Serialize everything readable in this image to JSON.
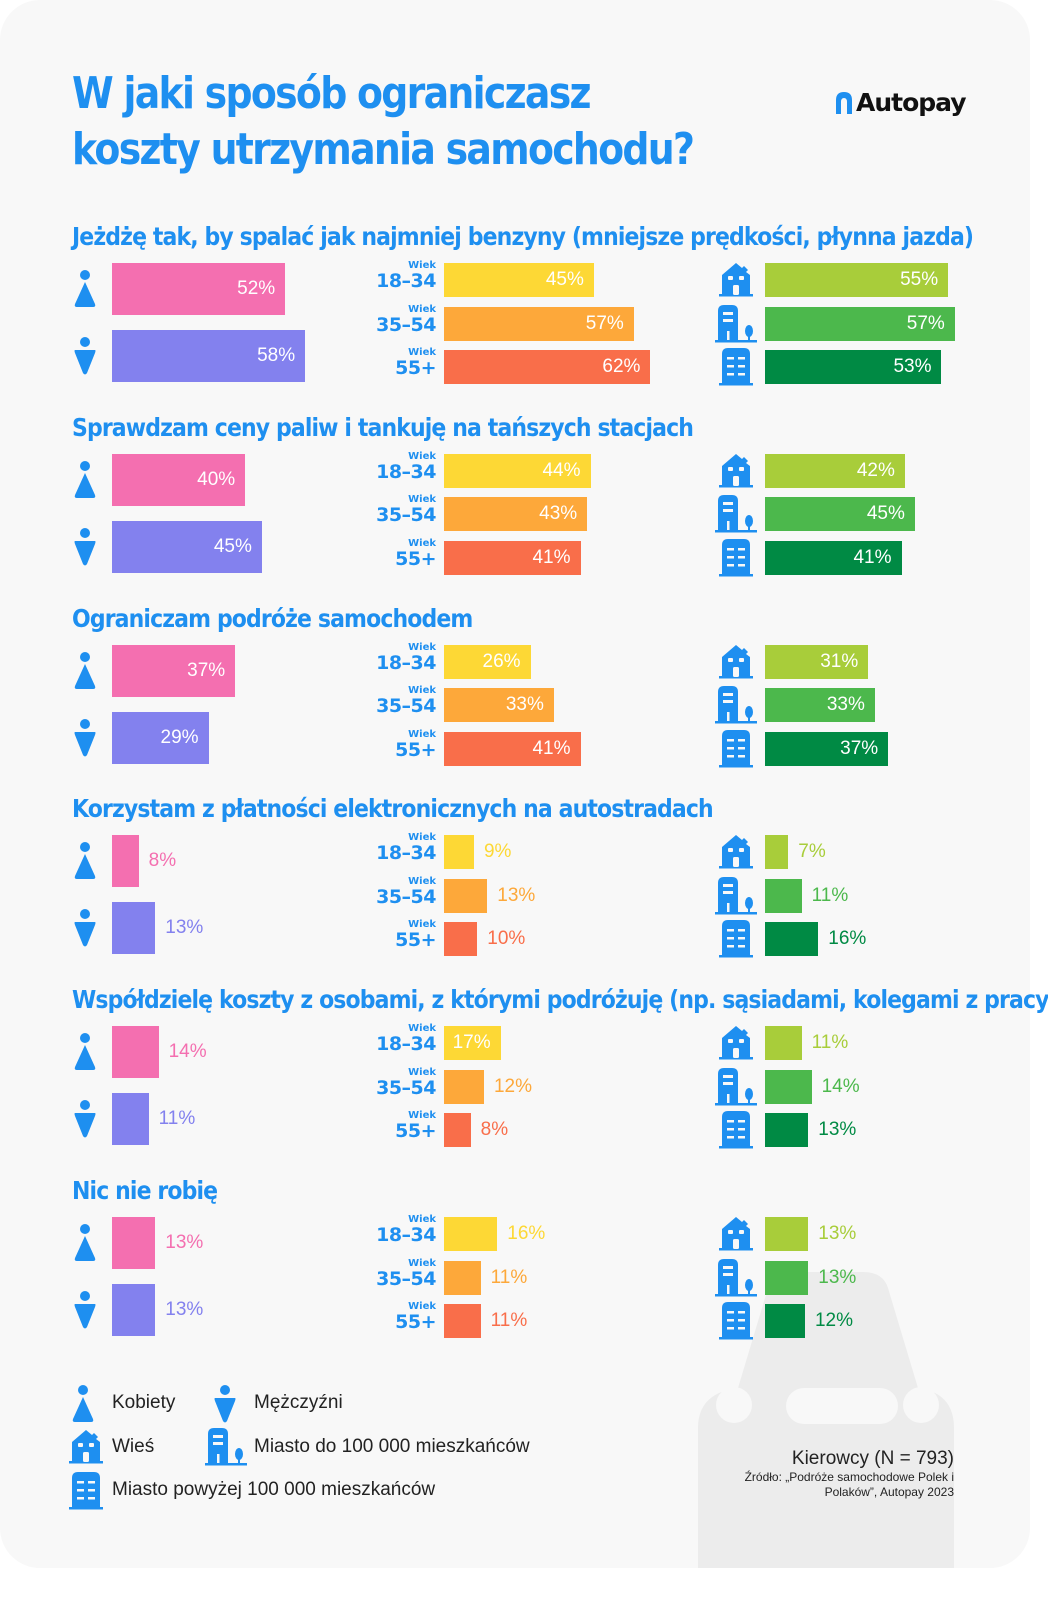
{
  "header": {
    "title_line1": "W jaki sposób ograniczasz",
    "title_line2": "koszty utrzymania samochodu?",
    "logo": "Autopay"
  },
  "colors": {
    "accent": "#1e8ff0",
    "women": "#f46fb0",
    "men": "#8381ee",
    "age_18_34": "#fdd835",
    "age_35_54": "#fda83a",
    "age_55_plus": "#f96e4a",
    "village": "#a8cd3a",
    "city_small": "#4cb84c",
    "city_large": "#008a44"
  },
  "chart_data": {
    "type": "bar",
    "unit": "%",
    "age_prefix": "Wiek",
    "groups": [
      "Kobiety",
      "Mężczyźni",
      "18–34",
      "35–54",
      "55+",
      "Wieś",
      "Miasto do 100 000 mieszkańców",
      "Miasto powyżej 100 000 mieszkańców"
    ],
    "questions": [
      {
        "label": "Jeżdżę tak, by spalać jak najmniej benzyny (mniejsze prędkości, płynna jazda)",
        "gender": [
          52,
          58
        ],
        "age": [
          45,
          57,
          62
        ],
        "place": [
          55,
          57,
          53
        ]
      },
      {
        "label": "Sprawdzam ceny paliw i tankuję na tańszych stacjach",
        "gender": [
          40,
          45
        ],
        "age": [
          44,
          43,
          41
        ],
        "place": [
          42,
          45,
          41
        ]
      },
      {
        "label": "Ograniczam podróże samochodem",
        "gender": [
          37,
          29
        ],
        "age": [
          26,
          33,
          41
        ],
        "place": [
          31,
          33,
          37
        ]
      },
      {
        "label": "Korzystam z płatności elektronicznych na autostradach",
        "gender": [
          8,
          13
        ],
        "age": [
          9,
          13,
          10
        ],
        "place": [
          7,
          11,
          16
        ]
      },
      {
        "label": "Współdzielę koszty z osobami, z którymi podróżuję (np. sąsiadami, kolegami z pracy)",
        "gender": [
          14,
          11
        ],
        "age": [
          17,
          12,
          8
        ],
        "place": [
          11,
          14,
          13
        ]
      },
      {
        "label": "Nic nie robię",
        "gender": [
          13,
          13
        ],
        "age": [
          16,
          11,
          11
        ],
        "place": [
          13,
          13,
          12
        ]
      }
    ]
  },
  "legend": {
    "women": "Kobiety",
    "men": "Mężczyźni",
    "village": "Wieś",
    "city_small": "Miasto do 100 000 mieszkańców",
    "city_large": "Miasto powyżej 100 000 mieszkańców"
  },
  "footer": {
    "sample": "Kierowcy (N = 793)",
    "source": "Źródło: „Podróże samochodowe Polek i Polaków”, Autopay 2023"
  }
}
